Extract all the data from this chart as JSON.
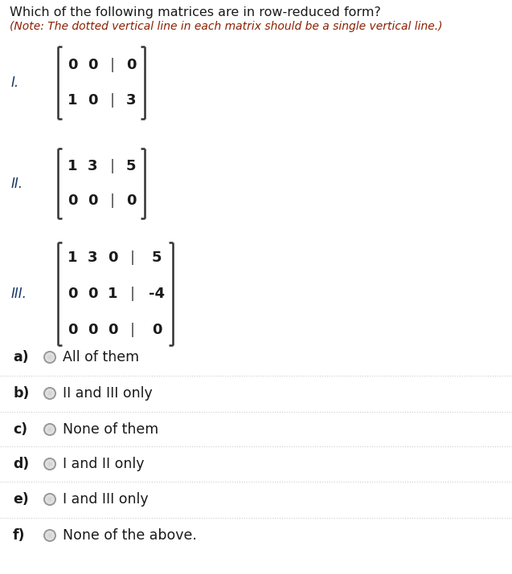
{
  "title": "Which of the following matrices are in row-reduced form?",
  "note": "(Note: The dotted vertical line in each matrix should be a single vertical line.)",
  "bg_color": "#ffffff",
  "text_color": "#1a1a1a",
  "label_color": "#1a3a6b",
  "note_color": "#8b2000",
  "matrix_I_label": "I.",
  "matrix_I": [
    [
      "0",
      "0",
      "|",
      "0"
    ],
    [
      "1",
      "0",
      "|",
      "3"
    ]
  ],
  "matrix_II_label": "II.",
  "matrix_II": [
    [
      "1",
      "3",
      "|",
      "5"
    ],
    [
      "0",
      "0",
      "|",
      "0"
    ]
  ],
  "matrix_III_label": "III.",
  "matrix_III": [
    [
      "1",
      "3",
      "0",
      "|",
      "5"
    ],
    [
      "0",
      "0",
      "1",
      "|",
      "-4"
    ],
    [
      "0",
      "0",
      "0",
      "|",
      "0"
    ]
  ],
  "options": [
    {
      "label": "a)",
      "text": "All of them"
    },
    {
      "label": "b)",
      "text": "II and III only"
    },
    {
      "label": "c)",
      "text": "None of them"
    },
    {
      "label": "d)",
      "text": "I and II only"
    },
    {
      "label": "e)",
      "text": "I and III only"
    },
    {
      "label": "f)",
      "text": "None of the above."
    }
  ],
  "figsize": [
    6.37,
    7.15
  ],
  "dpi": 100
}
